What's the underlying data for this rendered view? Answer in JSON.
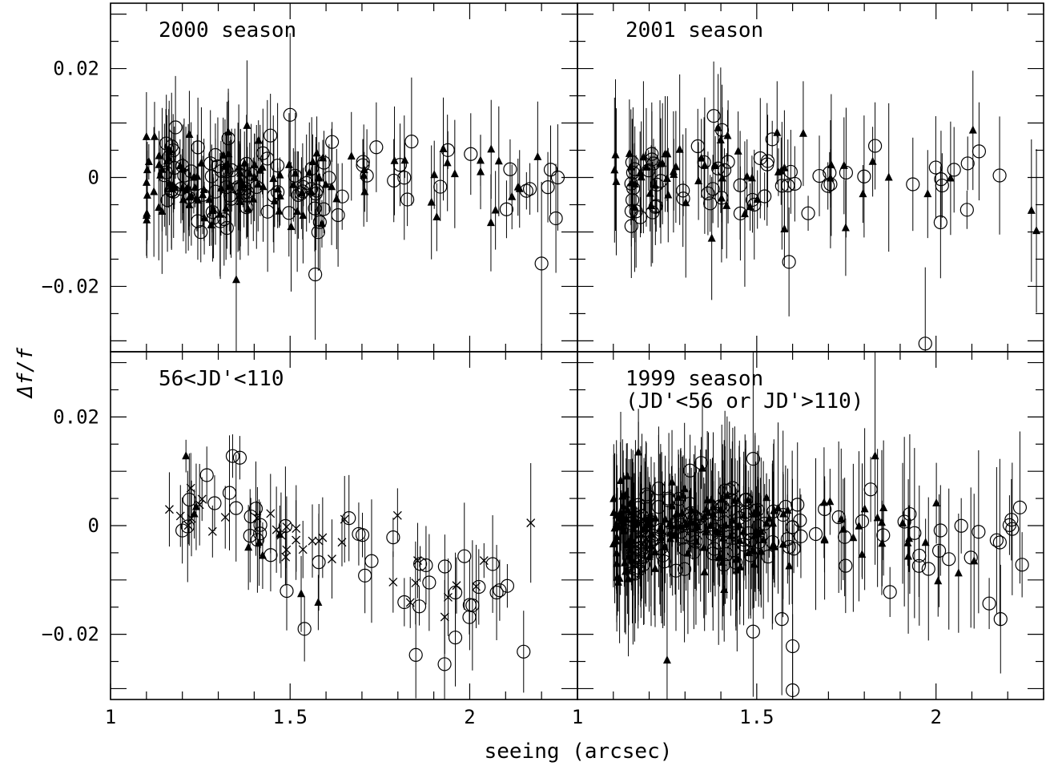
{
  "chart_data": {
    "type": "scatter",
    "xlabel": "seeing (arcsec)",
    "ylabel": "Δf/f",
    "xlim": [
      1.0,
      2.3
    ],
    "ylim": [
      -0.032,
      0.032
    ],
    "x_ticks": [
      1,
      1.5,
      2
    ],
    "x_tick_labels": [
      "1",
      "1.5",
      "2"
    ],
    "y_ticks": [
      0.02,
      0,
      -0.02
    ],
    "y_tick_labels": [
      "0.02",
      "0",
      "−0.02"
    ],
    "panels": [
      {
        "label": "2000 season",
        "label_line2": "",
        "seed": 11,
        "groups": [
          {
            "marker": "triangle",
            "count": 120,
            "xmin": 1.1,
            "xmax": 2.2,
            "density": "left",
            "ymean": -0.0005,
            "yspread": 0.004,
            "trend": 0,
            "errmin": 0.003,
            "errmax": 0.012
          },
          {
            "marker": "circle",
            "count": 95,
            "xmin": 1.15,
            "xmax": 2.25,
            "density": "left",
            "ymean": -0.0008,
            "yspread": 0.004,
            "trend": 0,
            "errmin": 0.003,
            "errmax": 0.012
          }
        ],
        "points": [
          {
            "marker": "circle",
            "x": 1.5,
            "y": 0.0115,
            "err": 0.015
          },
          {
            "marker": "circle",
            "x": 1.57,
            "y": -0.0178,
            "err": 0.012
          },
          {
            "marker": "circle",
            "x": 2.2,
            "y": -0.0158,
            "err": 0.015
          },
          {
            "marker": "circle",
            "x": 2.24,
            "y": -0.0075,
            "err": 0.01
          },
          {
            "marker": "triangle",
            "x": 1.35,
            "y": -0.0188,
            "err": 0.018
          },
          {
            "marker": "triangle",
            "x": 1.38,
            "y": 0.0095,
            "err": 0.012
          }
        ]
      },
      {
        "label": "2001 season",
        "label_line2": "",
        "seed": 23,
        "groups": [
          {
            "marker": "triangle",
            "count": 60,
            "xmin": 1.1,
            "xmax": 2.28,
            "density": "left",
            "ymean": -0.001,
            "yspread": 0.004,
            "trend": 0,
            "errmin": 0.004,
            "errmax": 0.014
          },
          {
            "marker": "circle",
            "count": 60,
            "xmin": 1.15,
            "xmax": 2.25,
            "density": "left",
            "ymean": -0.0005,
            "yspread": 0.004,
            "trend": 0,
            "errmin": 0.003,
            "errmax": 0.012
          }
        ],
        "points": [
          {
            "marker": "circle",
            "x": 1.38,
            "y": 0.0113,
            "err": 0.01
          },
          {
            "marker": "circle",
            "x": 1.59,
            "y": -0.0155,
            "err": 0.01
          },
          {
            "marker": "circle",
            "x": 1.97,
            "y": -0.0305,
            "err": 0.014
          },
          {
            "marker": "circle",
            "x": 2.12,
            "y": 0.0048,
            "err": 0.009
          },
          {
            "marker": "circle",
            "x": 1.83,
            "y": 0.0058,
            "err": 0.008
          },
          {
            "marker": "triangle",
            "x": 2.28,
            "y": -0.0098,
            "err": 0.015
          }
        ]
      },
      {
        "label": "56<JD'<110",
        "label_line2": "",
        "seed": 37,
        "groups": [
          {
            "marker": "cross",
            "count": 35,
            "xmin": 1.15,
            "xmax": 2.18,
            "density": "uniform",
            "ymean": 0.004,
            "yspread": 0.0035,
            "trend": -0.018,
            "errmin": 0.003,
            "errmax": 0.008
          },
          {
            "marker": "circle",
            "count": 40,
            "xmin": 1.17,
            "xmax": 2.17,
            "density": "uniform",
            "ymean": 0.005,
            "yspread": 0.004,
            "trend": -0.022,
            "errmin": 0.003,
            "errmax": 0.012
          },
          {
            "marker": "triangle",
            "count": 8,
            "xmin": 1.2,
            "xmax": 1.6,
            "density": "uniform",
            "ymean": 0.006,
            "yspread": 0.004,
            "trend": -0.02,
            "errmin": 0.004,
            "errmax": 0.008
          }
        ],
        "points": [
          {
            "marker": "circle",
            "x": 1.34,
            "y": 0.0128,
            "err": 0.004
          },
          {
            "marker": "circle",
            "x": 1.36,
            "y": 0.0125,
            "err": 0.004
          },
          {
            "marker": "circle",
            "x": 1.54,
            "y": -0.019,
            "err": 0.006
          },
          {
            "marker": "circle",
            "x": 1.85,
            "y": -0.0238,
            "err": 0.008
          },
          {
            "marker": "circle",
            "x": 1.93,
            "y": -0.0255,
            "err": 0.009
          },
          {
            "marker": "circle",
            "x": 1.96,
            "y": -0.0206,
            "err": 0.009
          },
          {
            "marker": "cross",
            "x": 2.17,
            "y": 0.0005,
            "err": 0.011
          },
          {
            "marker": "triangle",
            "x": 1.21,
            "y": 0.0128,
            "err": 0.003
          }
        ]
      },
      {
        "label": "1999 season",
        "label_line2": "(JD'<56 or JD'>110)",
        "seed": 53,
        "groups": [
          {
            "marker": "triangle",
            "count": 170,
            "xmin": 1.1,
            "xmax": 2.2,
            "density": "left",
            "ymean": -0.0005,
            "yspread": 0.0045,
            "trend": 0,
            "errmin": 0.004,
            "errmax": 0.016
          },
          {
            "marker": "circle",
            "count": 150,
            "xmin": 1.15,
            "xmax": 2.25,
            "density": "left",
            "ymean": -0.0008,
            "yspread": 0.0045,
            "trend": 0,
            "errmin": 0.004,
            "errmax": 0.016
          }
        ],
        "points": [
          {
            "marker": "circle",
            "x": 1.49,
            "y": 0.0123,
            "err": 0.02
          },
          {
            "marker": "circle",
            "x": 1.49,
            "y": -0.0195,
            "err": 0.012
          },
          {
            "marker": "circle",
            "x": 1.57,
            "y": -0.0172,
            "err": 0.014
          },
          {
            "marker": "circle",
            "x": 1.6,
            "y": -0.0222,
            "err": 0.014
          },
          {
            "marker": "circle",
            "x": 1.6,
            "y": -0.0303,
            "err": 0.014
          },
          {
            "marker": "circle",
            "x": 2.18,
            "y": -0.0172,
            "err": 0.01
          },
          {
            "marker": "circle",
            "x": 2.24,
            "y": -0.0072,
            "err": 0.006
          },
          {
            "marker": "triangle",
            "x": 1.25,
            "y": -0.0248,
            "err": 0.016
          },
          {
            "marker": "triangle",
            "x": 1.17,
            "y": 0.0135,
            "err": 0.008
          },
          {
            "marker": "triangle",
            "x": 1.83,
            "y": 0.0128,
            "err": 0.02
          }
        ]
      }
    ]
  }
}
